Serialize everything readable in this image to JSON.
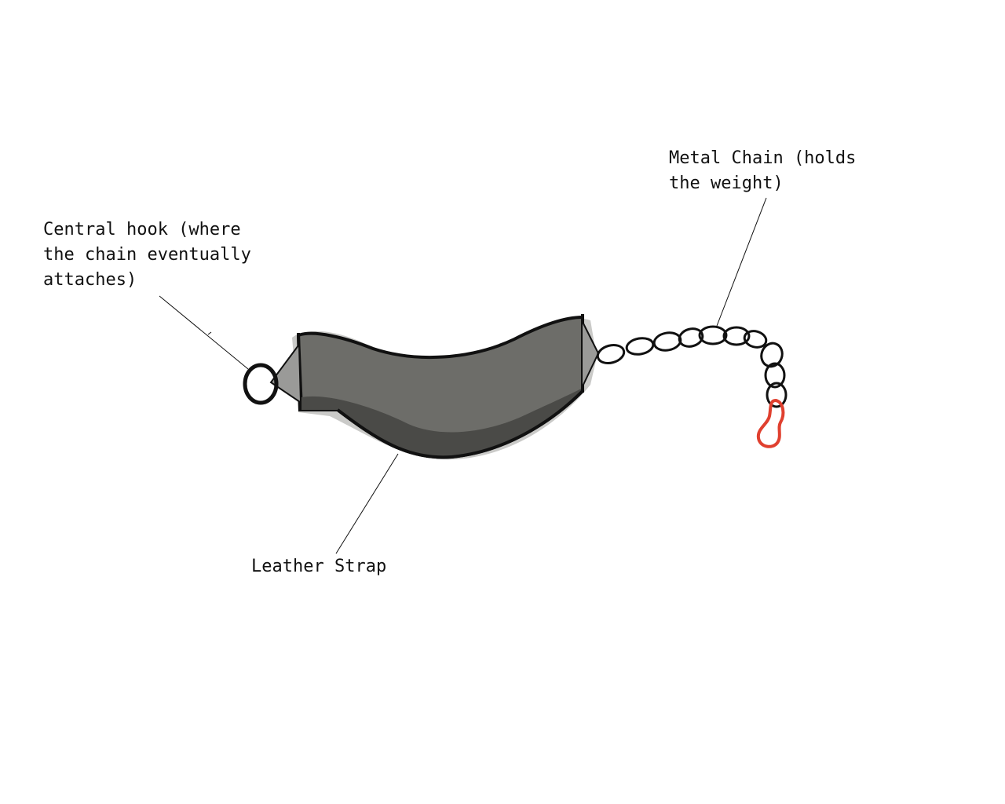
{
  "labels": {
    "hook": "Central hook (where\nthe chain eventually\nattaches)",
    "chain": "Metal Chain (holds\nthe weight)",
    "strap": "Leather Strap"
  },
  "colors": {
    "background": "#ffffff",
    "outline": "#111111",
    "strap_fill": "#6d6d69",
    "strap_shadow": "#4a4a47",
    "strap_halo": "#a6a6a4",
    "clip": "#e0402f"
  },
  "icons": {
    "hook": "ring-icon",
    "chain": "chain-link-icon",
    "clip": "carabiner-clip-icon"
  }
}
